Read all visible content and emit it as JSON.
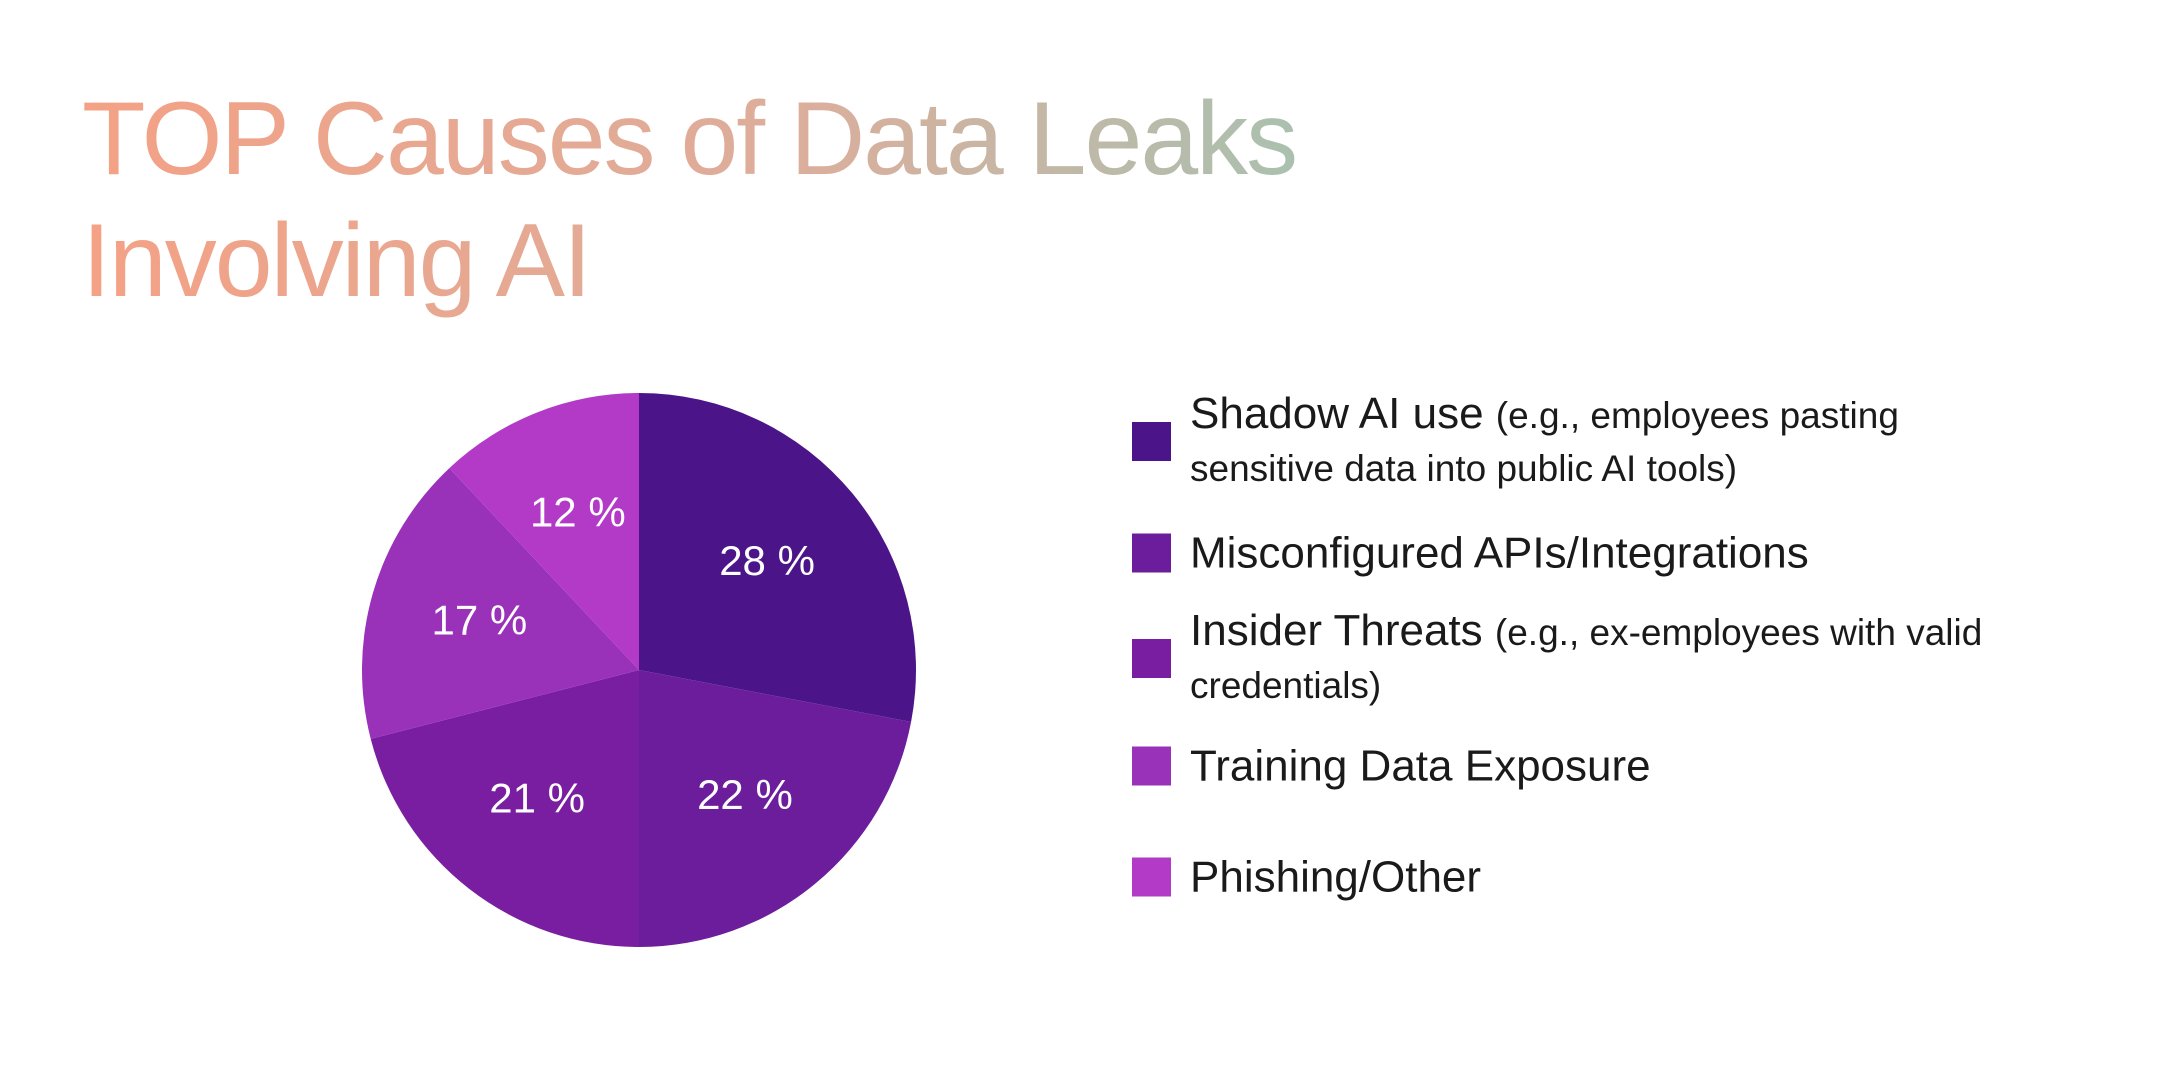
{
  "chart_data": {
    "type": "pie",
    "title": "TOP Causes of Data Leaks Involving AI",
    "categories": [
      "Shadow AI use",
      "Misconfigured APIs/Integrations",
      "Insider Threats",
      "Training Data Exposure",
      "Phishing/Other"
    ],
    "category_notes": [
      "(e.g., employees pasting sensitive data into public AI tools)",
      null,
      "(e.g., ex-employees with valid credentials)",
      null,
      null
    ],
    "values": [
      28,
      22,
      21,
      17,
      12
    ],
    "value_labels": [
      "28 %",
      "22 %",
      "21 %",
      "17 %",
      "12 %"
    ],
    "colors": [
      "#4b1589",
      "#6b1d9b",
      "#7a1ea1",
      "#9a31b9",
      "#b23ac7"
    ],
    "legend": "right"
  }
}
